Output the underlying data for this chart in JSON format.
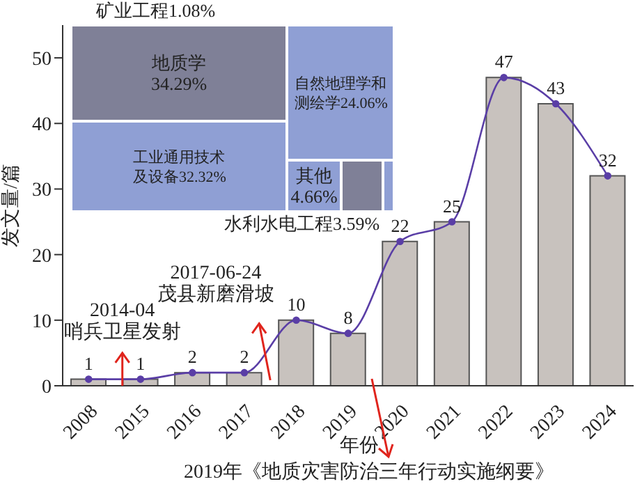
{
  "chart_data": [
    {
      "type": "bar",
      "categories": [
        "2008",
        "2015",
        "2016",
        "2017",
        "2018",
        "2019",
        "2020",
        "2021",
        "2022",
        "2023",
        "2024"
      ],
      "series": [
        {
          "type": "bar",
          "color": "#c8c2be",
          "values": [
            1,
            1,
            2,
            2,
            10,
            8,
            22,
            25,
            47,
            43,
            32
          ]
        },
        {
          "type": "line",
          "color": "#5a3ea6",
          "values": [
            1,
            1,
            2,
            2,
            10,
            8,
            22,
            25,
            47,
            43,
            32
          ],
          "value_labels": [
            "1",
            "1",
            "2",
            "2",
            "10",
            "8",
            "22",
            "25",
            "47",
            "43",
            "32"
          ]
        }
      ],
      "xlabel": "年份",
      "ylabel": "发文量/篇",
      "ylim": [
        0,
        55
      ],
      "yticks": [
        0,
        10,
        20,
        30,
        40,
        50
      ],
      "marker": "circle",
      "grid": false,
      "legend": false,
      "annotations": [
        "2014-04\n哨兵卫星发射",
        "2017-06-24\n茂县新磨滑坡",
        "2019年《地质灾害防治三年行动实施纲要》"
      ]
    },
    {
      "type": "other",
      "categories": [
        "地质学",
        "工业通用技术及设备",
        "自然地理学和测绘学",
        "其他",
        "水利水电工程",
        "矿业工程"
      ],
      "values": [
        34.29,
        32.32,
        24.06,
        4.66,
        3.59,
        1.08
      ],
      "value_labels": [
        "34.29%",
        "32.32%",
        "24.06%",
        "4.66%",
        "3.59%",
        "1.08%"
      ],
      "colors": [
        "#7f8097",
        "#8f9fd4",
        "#8f9fd4",
        "#8f9fd4",
        "#7f8097",
        "#8f9fd4"
      ]
    }
  ]
}
